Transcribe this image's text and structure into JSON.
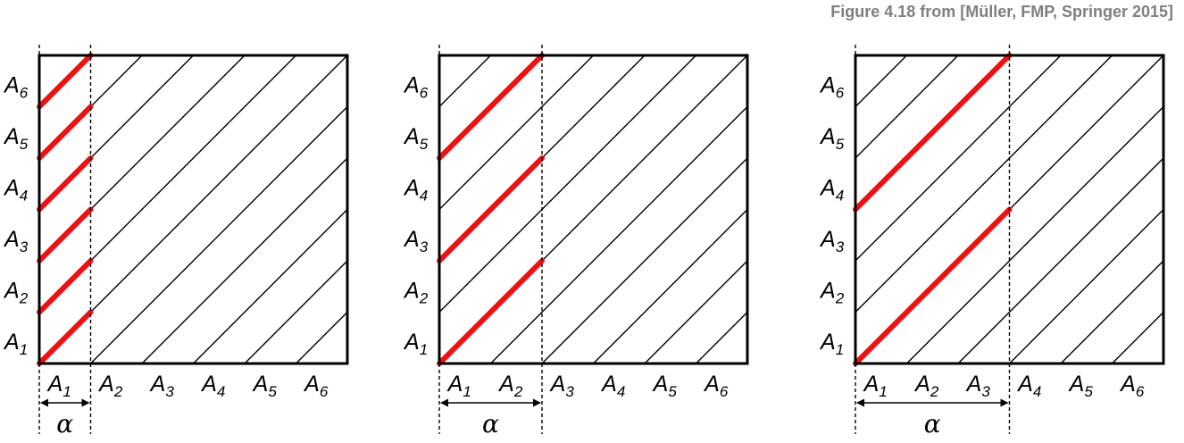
{
  "caption": "Figure 4.18 from [Müller, FMP, Springer 2015]",
  "segments": [
    "1",
    "2",
    "3",
    "4",
    "5",
    "6"
  ],
  "segment_letter": "A",
  "alpha_symbol": "α",
  "panels": [
    {
      "alpha_segments": 1
    },
    {
      "alpha_segments": 2
    },
    {
      "alpha_segments": 3
    }
  ],
  "colors": {
    "highlight": "#ee1111",
    "lines": "#000000"
  }
}
